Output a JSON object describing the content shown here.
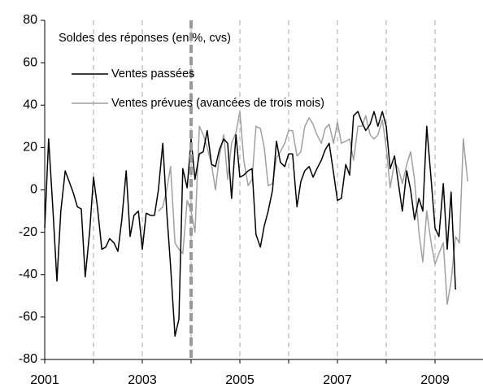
{
  "chart_data": {
    "type": "line",
    "annotation": "Soldes des réponses (en %, cvs)",
    "xlim": [
      2001,
      2010
    ],
    "xticks": [
      2001,
      2003,
      2005,
      2007,
      2009
    ],
    "x_gridlines": [
      2002,
      2003,
      2004,
      2005,
      2006,
      2007,
      2008,
      2009
    ],
    "marker_x": 2004,
    "ylim": [
      -80,
      80
    ],
    "yticks": [
      -80,
      -60,
      -40,
      -20,
      0,
      20,
      40,
      60,
      80
    ],
    "series": [
      {
        "name": "Ventes passées",
        "color": "#000000",
        "x": [
          2001.0,
          2001.08,
          2001.17,
          2001.25,
          2001.33,
          2001.42,
          2001.5,
          2001.58,
          2001.67,
          2001.75,
          2001.83,
          2001.92,
          2002.0,
          2002.08,
          2002.17,
          2002.25,
          2002.33,
          2002.42,
          2002.5,
          2002.58,
          2002.67,
          2002.75,
          2002.83,
          2002.92,
          2003.0,
          2003.08,
          2003.17,
          2003.25,
          2003.33,
          2003.42,
          2003.5,
          2003.58,
          2003.67,
          2003.75,
          2003.83,
          2003.92,
          2004.0,
          2004.08,
          2004.17,
          2004.25,
          2004.33,
          2004.42,
          2004.5,
          2004.58,
          2004.67,
          2004.75,
          2004.83,
          2004.92,
          2005.0,
          2005.08,
          2005.17,
          2005.25,
          2005.33,
          2005.42,
          2005.5,
          2005.58,
          2005.67,
          2005.75,
          2005.83,
          2005.92,
          2006.0,
          2006.08,
          2006.17,
          2006.25,
          2006.33,
          2006.42,
          2006.5,
          2006.58,
          2006.67,
          2006.75,
          2006.83,
          2006.92,
          2007.0,
          2007.08,
          2007.17,
          2007.25,
          2007.33,
          2007.42,
          2007.5,
          2007.58,
          2007.67,
          2007.75,
          2007.83,
          2007.92,
          2008.0,
          2008.08,
          2008.17,
          2008.25,
          2008.33,
          2008.42,
          2008.5,
          2008.58,
          2008.67,
          2008.75,
          2008.83,
          2008.92,
          2009.0,
          2009.08,
          2009.17,
          2009.25,
          2009.33,
          2009.42
        ],
        "values": [
          -18,
          24,
          -10,
          -43,
          -10,
          9,
          4,
          -1,
          -8,
          -9,
          -41,
          -20,
          6,
          -8,
          -28,
          -27,
          -23,
          -25,
          -29,
          -14,
          9,
          -22,
          -12,
          -10,
          -28,
          -11,
          -12,
          -12,
          0,
          22,
          -10,
          -36,
          -69,
          -61,
          10,
          1,
          24,
          5,
          17,
          18,
          28,
          12,
          11,
          19,
          24,
          22,
          -4,
          26,
          6,
          7,
          9,
          10,
          -21,
          -27,
          -17,
          -10,
          0,
          23,
          13,
          11,
          17,
          17,
          -8,
          4,
          9,
          11,
          6,
          10,
          14,
          19,
          22,
          8,
          -5,
          -4,
          12,
          7,
          35,
          37,
          32,
          28,
          31,
          37,
          30,
          37,
          30,
          10,
          16,
          3,
          -10,
          9,
          0,
          -14,
          -4,
          -10,
          30,
          5,
          -18,
          -22,
          3,
          -28,
          -1,
          -47
        ]
      },
      {
        "name": "Ventes prévues (avancées de trois mois)",
        "color": "#a0a0a0",
        "x": [
          2003.33,
          2003.42,
          2003.5,
          2003.58,
          2003.67,
          2003.75,
          2003.83,
          2003.92,
          2004.0,
          2004.08,
          2004.17,
          2004.25,
          2004.33,
          2004.42,
          2004.5,
          2004.58,
          2004.67,
          2004.75,
          2004.83,
          2004.92,
          2005.0,
          2005.08,
          2005.17,
          2005.25,
          2005.33,
          2005.42,
          2005.5,
          2005.58,
          2005.67,
          2005.75,
          2005.83,
          2005.92,
          2006.0,
          2006.08,
          2006.17,
          2006.25,
          2006.33,
          2006.42,
          2006.5,
          2006.58,
          2006.67,
          2006.75,
          2006.83,
          2006.92,
          2007.0,
          2007.08,
          2007.17,
          2007.25,
          2007.33,
          2007.42,
          2007.5,
          2007.58,
          2007.67,
          2007.75,
          2007.83,
          2007.92,
          2008.0,
          2008.08,
          2008.17,
          2008.25,
          2008.33,
          2008.42,
          2008.5,
          2008.58,
          2008.67,
          2008.75,
          2008.83,
          2008.92,
          2009.0,
          2009.08,
          2009.17,
          2009.25,
          2009.33,
          2009.42,
          2009.5,
          2009.58,
          2009.67
        ],
        "values": [
          -10,
          -8,
          0,
          11,
          -25,
          -28,
          -30,
          -5,
          -10,
          -20,
          30,
          26,
          20,
          12,
          0,
          16,
          26,
          5,
          22,
          27,
          37,
          14,
          2,
          5,
          30,
          29,
          20,
          2,
          3,
          15,
          18,
          22,
          28,
          28,
          16,
          18,
          30,
          34,
          31,
          26,
          22,
          29,
          31,
          22,
          32,
          22,
          23,
          24,
          14,
          30,
          30,
          35,
          26,
          24,
          26,
          33,
          20,
          1,
          13,
          10,
          3,
          12,
          18,
          5,
          -20,
          -34,
          -10,
          -25,
          -35,
          -30,
          -25,
          -54,
          -43,
          -22,
          -25,
          24,
          4
        ]
      }
    ]
  }
}
